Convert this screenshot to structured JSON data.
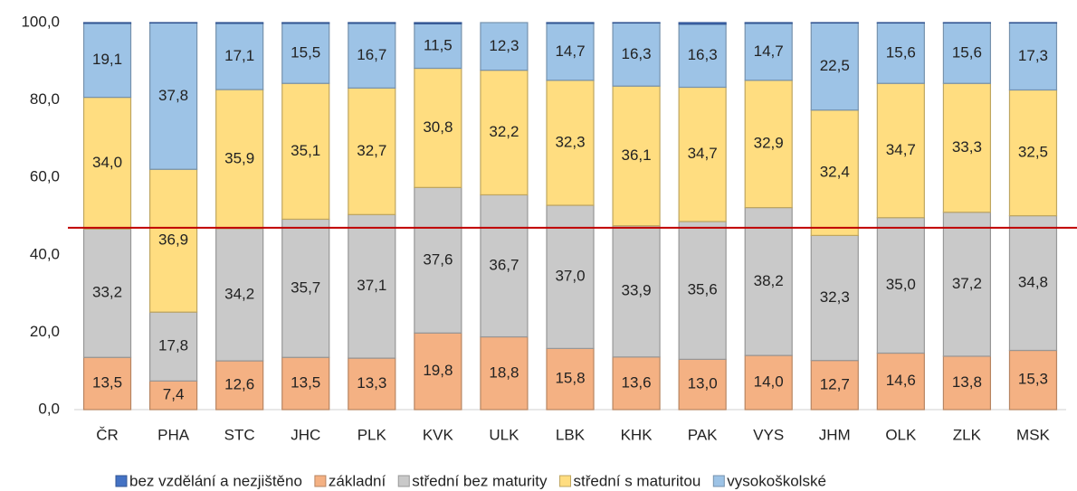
{
  "chart_data": {
    "type": "stacked_bar",
    "categories": [
      "ČR",
      "PHA",
      "STC",
      "JHC",
      "PLK",
      "KVK",
      "ULK",
      "LBK",
      "KHK",
      "PAK",
      "VYS",
      "JHM",
      "OLK",
      "ZLK",
      "MSK"
    ],
    "series": [
      {
        "name": "bez vzdělání a nezjištěno",
        "color": "#4472c4",
        "values": [
          0.2,
          0.1,
          0.2,
          0.2,
          0.2,
          0.3,
          0.0,
          0.2,
          0.1,
          0.4,
          0.2,
          0.1,
          0.1,
          0.1,
          0.1
        ]
      },
      {
        "name": "základní",
        "color": "#f4b183",
        "values": [
          13.5,
          7.4,
          12.6,
          13.5,
          13.3,
          19.8,
          18.8,
          15.8,
          13.6,
          13.0,
          14.0,
          12.7,
          14.6,
          13.8,
          15.3
        ],
        "value_labels": [
          "13,5",
          "7,4",
          "12,6",
          "13,5",
          "13,3",
          "19,8",
          "18,8",
          "15,8",
          "13,6",
          "13,0",
          "14,0",
          "12,7",
          "14,6",
          "13,8",
          "15,3"
        ]
      },
      {
        "name": "střední bez maturity",
        "color": "#c9c9c9",
        "values": [
          33.2,
          17.8,
          34.2,
          35.7,
          37.1,
          37.6,
          36.7,
          37.0,
          33.9,
          35.6,
          38.2,
          32.3,
          35.0,
          37.2,
          34.8
        ],
        "value_labels": [
          "33,2",
          "17,8",
          "34,2",
          "35,7",
          "37,1",
          "37,6",
          "36,7",
          "37,0",
          "33,9",
          "35,6",
          "38,2",
          "32,3",
          "35,0",
          "37,2",
          "34,8"
        ]
      },
      {
        "name": "střední s maturitou",
        "color": "#ffdd80",
        "values": [
          34.0,
          36.9,
          35.9,
          35.1,
          32.7,
          30.8,
          32.2,
          32.3,
          36.1,
          34.7,
          32.9,
          32.4,
          34.7,
          33.3,
          32.5
        ],
        "value_labels": [
          "34,0",
          "36,9",
          "35,9",
          "35,1",
          "32,7",
          "30,8",
          "32,2",
          "32,3",
          "36,1",
          "34,7",
          "32,9",
          "32,4",
          "34,7",
          "33,3",
          "32,5"
        ]
      },
      {
        "name": "vysokoškolské",
        "color": "#9dc3e6",
        "values": [
          19.1,
          37.8,
          17.1,
          15.5,
          16.7,
          11.5,
          12.3,
          14.7,
          16.3,
          16.3,
          14.7,
          22.5,
          15.6,
          15.6,
          17.3
        ],
        "value_labels": [
          "19,1",
          "37,8",
          "17,1",
          "15,5",
          "16,7",
          "11,5",
          "12,3",
          "14,7",
          "16,3",
          "16,3",
          "14,7",
          "22,5",
          "15,6",
          "15,6",
          "17,3"
        ]
      }
    ],
    "ylim": [
      0,
      100
    ],
    "yticks": [
      {
        "value": 0,
        "label": "0,0"
      },
      {
        "value": 20,
        "label": "20,0"
      },
      {
        "value": 40,
        "label": "40,0"
      },
      {
        "value": 60,
        "label": "60,0"
      },
      {
        "value": 80,
        "label": "80,0"
      },
      {
        "value": 100,
        "label": "100,0"
      }
    ],
    "reference_line": {
      "value": 47.0,
      "color": "#c00000"
    },
    "legend": "bottom"
  }
}
